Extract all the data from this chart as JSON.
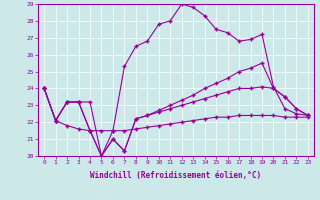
{
  "xlabel": "Windchill (Refroidissement éolien,°C)",
  "xlim": [
    -0.5,
    23.5
  ],
  "ylim": [
    20,
    29
  ],
  "yticks": [
    20,
    21,
    22,
    23,
    24,
    25,
    26,
    27,
    28,
    29
  ],
  "xticks": [
    0,
    1,
    2,
    3,
    4,
    5,
    6,
    7,
    8,
    9,
    10,
    11,
    12,
    13,
    14,
    15,
    16,
    17,
    18,
    19,
    20,
    21,
    22,
    23
  ],
  "background_color": "#cce8e8",
  "line_color": "#990099",
  "line1_temp": [
    24.0,
    22.1,
    23.2,
    23.2,
    23.2,
    20.0,
    21.5,
    25.3,
    26.5,
    26.8,
    27.8,
    28.0,
    29.0,
    28.8,
    28.3,
    27.5,
    27.3,
    26.8,
    26.9,
    27.2,
    24.1,
    22.8,
    22.5,
    22.4
  ],
  "line2_temp": [
    24.0,
    22.1,
    23.2,
    23.2,
    21.5,
    20.0,
    21.0,
    20.3,
    22.2,
    22.4,
    22.7,
    23.0,
    23.3,
    23.6,
    24.0,
    24.3,
    24.6,
    25.0,
    25.2,
    25.5,
    24.0,
    23.5,
    22.8,
    22.4
  ],
  "line3_temp": [
    24.0,
    22.1,
    23.2,
    23.2,
    21.5,
    20.0,
    21.0,
    20.3,
    22.2,
    22.4,
    22.6,
    22.8,
    23.0,
    23.2,
    23.4,
    23.6,
    23.8,
    24.0,
    24.0,
    24.1,
    24.0,
    23.5,
    22.8,
    22.4
  ],
  "line4_temp": [
    24.0,
    22.1,
    21.8,
    21.6,
    21.5,
    21.5,
    21.5,
    21.5,
    21.6,
    21.7,
    21.8,
    21.9,
    22.0,
    22.1,
    22.2,
    22.3,
    22.3,
    22.4,
    22.4,
    22.4,
    22.4,
    22.3,
    22.3,
    22.3
  ]
}
